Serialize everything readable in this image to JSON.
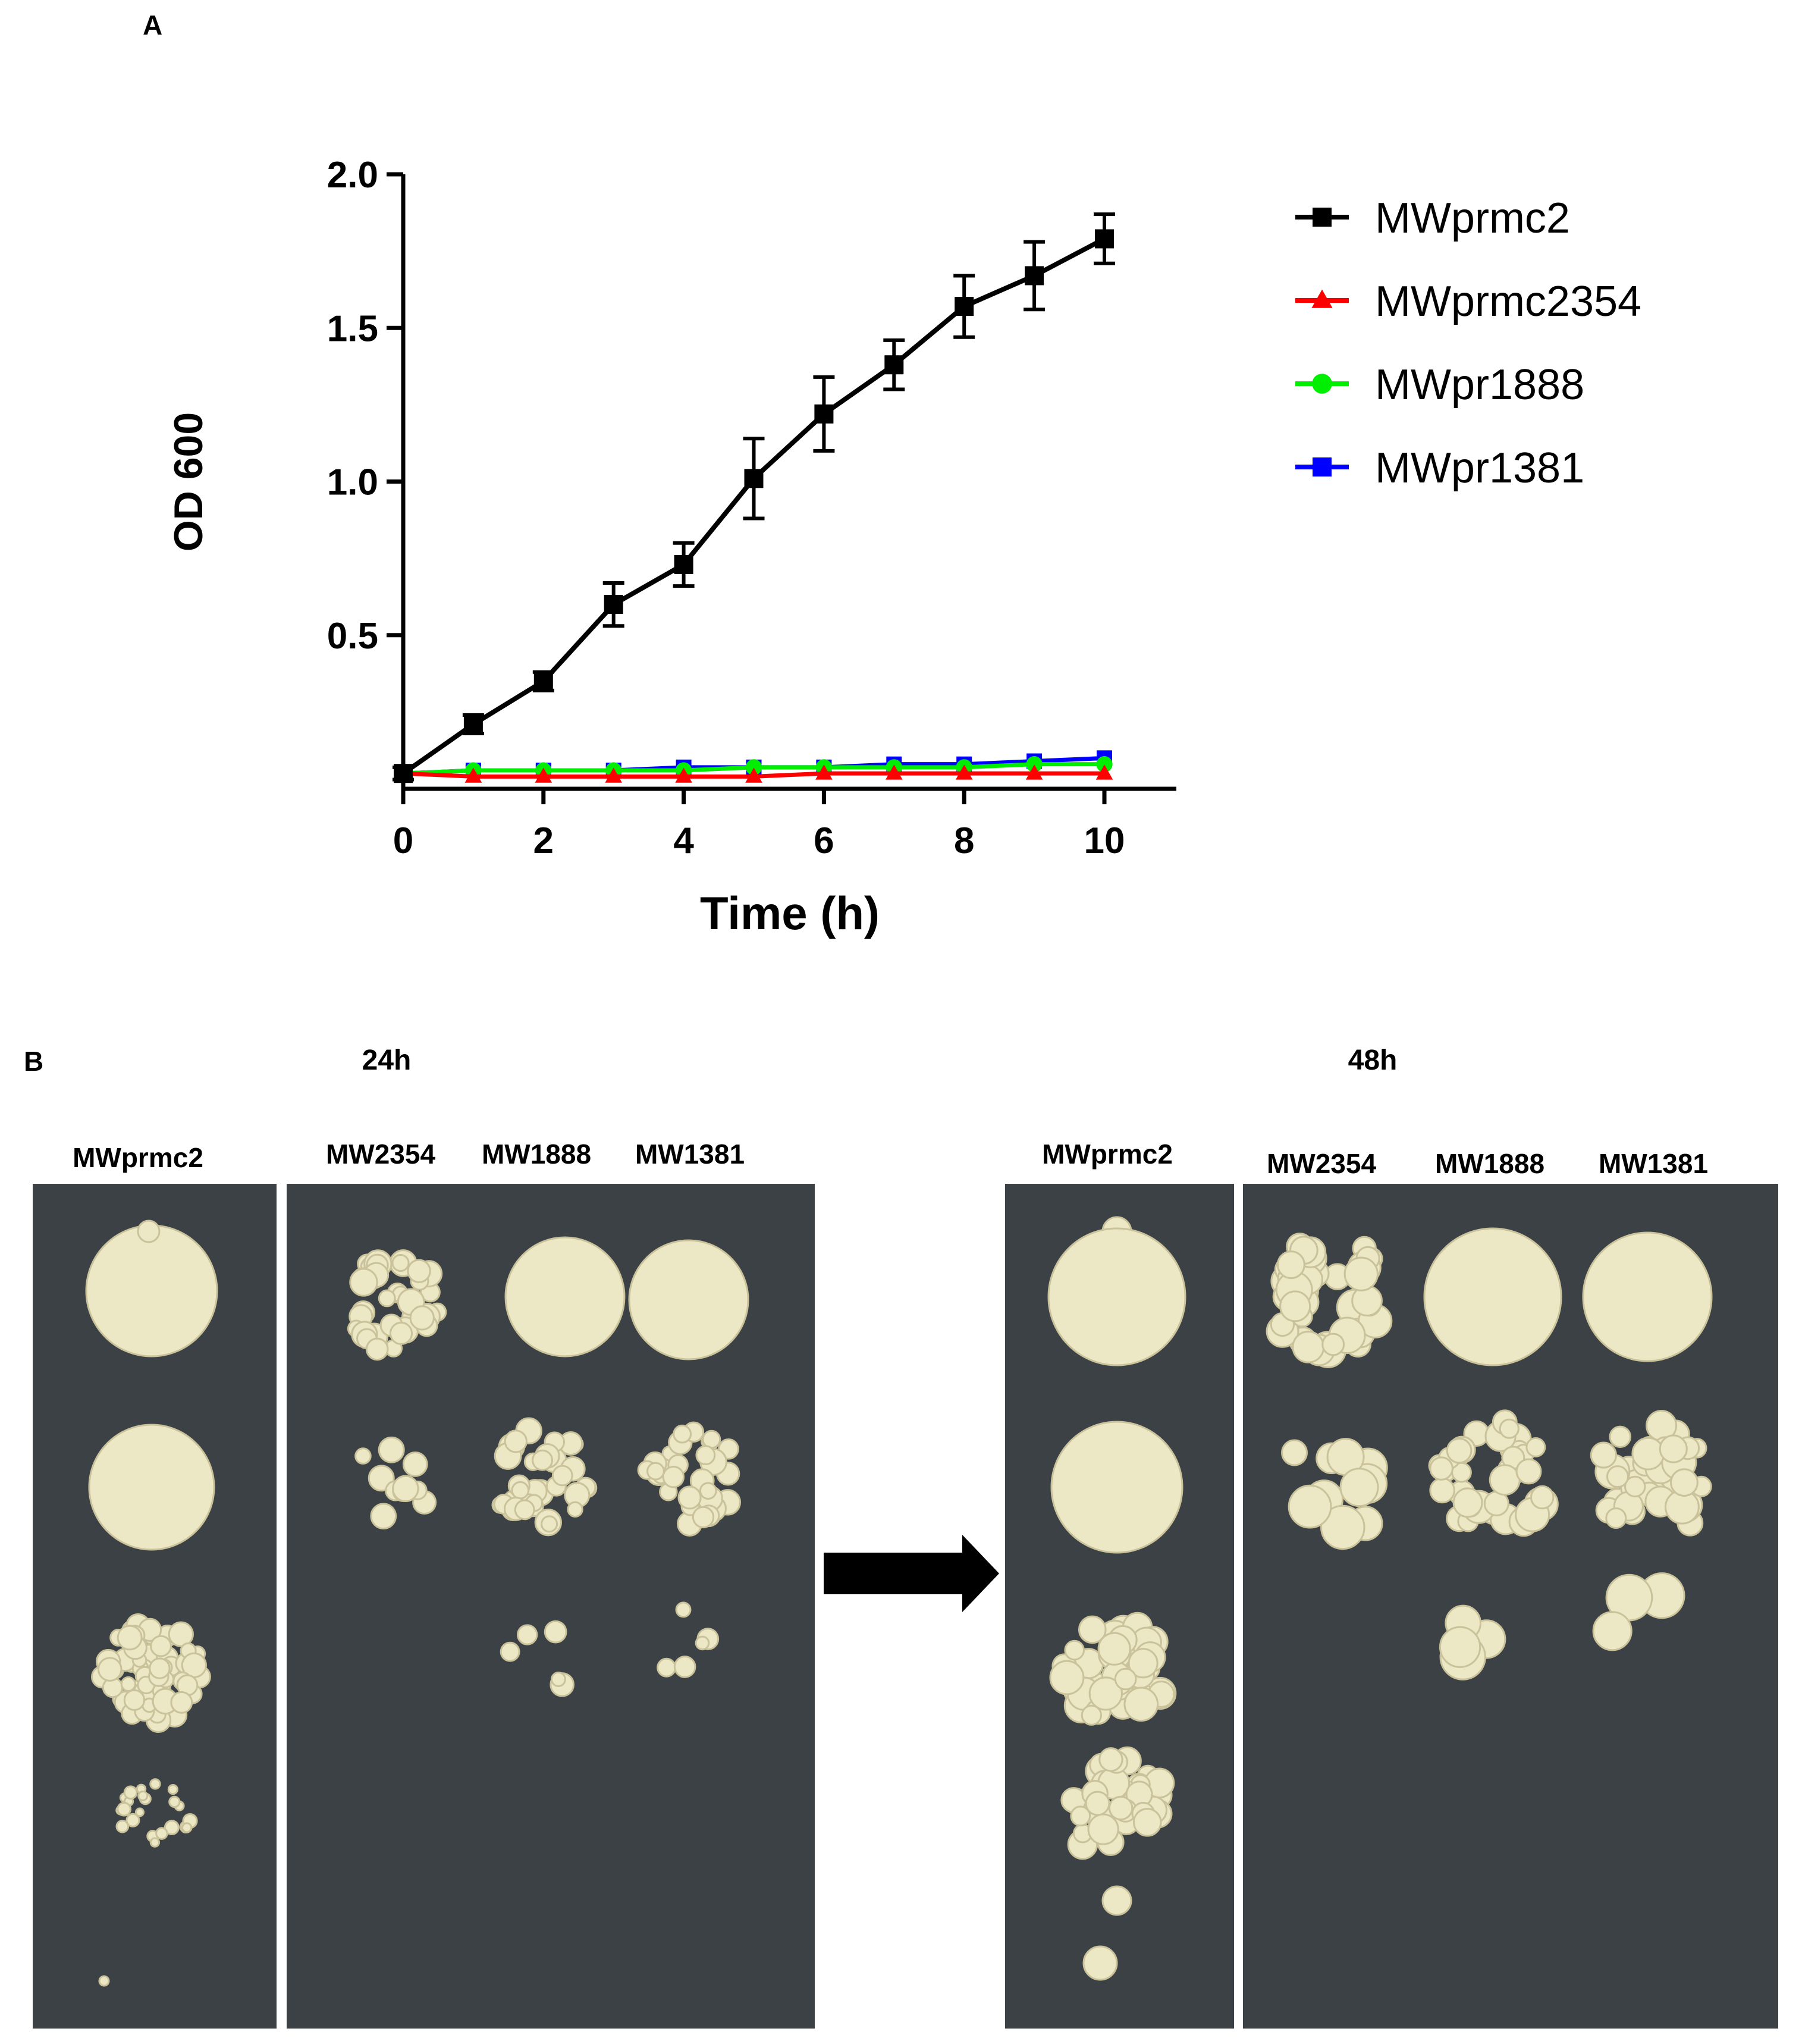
{
  "panels": {
    "a_label": "A",
    "b_label": "B"
  },
  "chart_data": {
    "type": "line",
    "title": "",
    "xlabel": "Time (h)",
    "ylabel": "OD 600",
    "xlim": [
      0,
      10.5
    ],
    "ylim": [
      0,
      2.0
    ],
    "xticks": [
      0,
      2,
      4,
      6,
      8,
      10
    ],
    "xtick_labels": [
      "0",
      "2",
      "4",
      "6",
      "8",
      "10"
    ],
    "yticks": [
      0.5,
      1.0,
      1.5,
      2.0
    ],
    "ytick_labels": [
      "0.5",
      "1.0",
      "1.5",
      "2.0"
    ],
    "grid": false,
    "legend_position": "right",
    "series": [
      {
        "name": "MWprmc2",
        "color": "#000000",
        "marker": "square",
        "x": [
          0,
          1,
          2,
          3,
          4,
          5,
          6,
          7,
          8,
          9,
          10
        ],
        "y": [
          0.05,
          0.21,
          0.35,
          0.6,
          0.73,
          1.01,
          1.22,
          1.38,
          1.57,
          1.67,
          1.79
        ],
        "err": [
          0.02,
          0.03,
          0.03,
          0.07,
          0.07,
          0.13,
          0.12,
          0.08,
          0.1,
          0.11,
          0.08
        ]
      },
      {
        "name": "MWprmc2354",
        "color": "#ff0000",
        "marker": "triangle",
        "x": [
          0,
          1,
          2,
          3,
          4,
          5,
          6,
          7,
          8,
          9,
          10
        ],
        "y": [
          0.05,
          0.04,
          0.04,
          0.04,
          0.04,
          0.04,
          0.05,
          0.05,
          0.05,
          0.05,
          0.05
        ]
      },
      {
        "name": "MWpr1888",
        "color": "#00ee00",
        "marker": "circle",
        "x": [
          0,
          1,
          2,
          3,
          4,
          5,
          6,
          7,
          8,
          9,
          10
        ],
        "y": [
          0.05,
          0.06,
          0.06,
          0.06,
          0.06,
          0.07,
          0.07,
          0.07,
          0.07,
          0.08,
          0.08
        ]
      },
      {
        "name": "MWpr1381",
        "color": "#0000ff",
        "marker": "square",
        "x": [
          0,
          1,
          2,
          3,
          4,
          5,
          6,
          7,
          8,
          9,
          10
        ],
        "y": [
          0.05,
          0.06,
          0.06,
          0.06,
          0.07,
          0.07,
          0.07,
          0.08,
          0.08,
          0.09,
          0.1
        ]
      }
    ]
  },
  "plates": {
    "time_24": "24h",
    "time_48": "48h",
    "control_label_24": "MWprmc2",
    "control_label_48": "MWprmc2",
    "strain_labels_24": [
      "MW2354",
      "MW1888",
      "MW1381"
    ],
    "strain_labels_48": [
      "MW2354",
      "MW1888",
      "MW1381"
    ]
  },
  "colors": {
    "plate": "#3b4144",
    "colony": "#ece7c4",
    "colony_edge": "#c9c29a"
  }
}
